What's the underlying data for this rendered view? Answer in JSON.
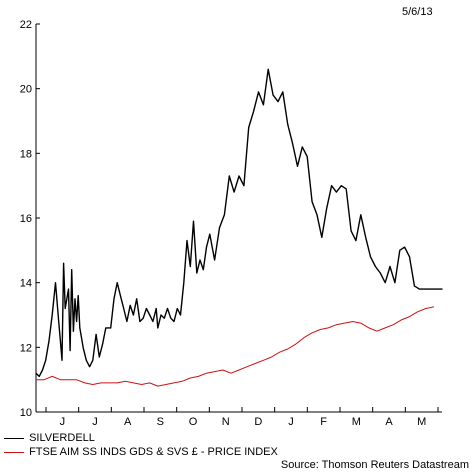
{
  "date_label": "5/6/13",
  "source": "Source: Thomson Reuters Datastream",
  "colors": {
    "series1": "#000000",
    "series2": "#d01010"
  },
  "chart_data": {
    "type": "line",
    "ylim": [
      10,
      22
    ],
    "yticks": [
      10,
      12,
      14,
      16,
      18,
      20,
      22
    ],
    "xlabels": [
      "J",
      "J",
      "A",
      "S",
      "O",
      "N",
      "D",
      "J",
      "F",
      "M",
      "A",
      "M"
    ],
    "grid": false,
    "legend_position": "bottom-left",
    "series": [
      {
        "name": "SILVERDELL",
        "x": [
          0,
          2,
          4,
          6,
          8,
          10,
          12,
          14,
          15,
          16,
          17,
          18,
          20,
          21,
          22,
          23,
          24,
          25,
          26,
          27,
          28,
          29,
          30,
          31,
          33,
          35,
          37,
          39,
          41,
          43,
          46,
          48,
          50,
          52,
          54,
          56,
          58,
          60,
          62,
          64,
          66,
          68,
          70,
          72,
          74,
          75,
          77,
          79,
          81,
          83,
          85,
          87,
          89,
          91,
          93,
          95,
          97,
          99,
          101,
          103,
          105,
          107,
          110,
          113,
          116,
          119,
          122,
          125,
          128,
          131,
          134,
          137,
          140,
          143,
          146,
          149,
          152,
          155,
          158,
          161,
          164,
          167,
          170,
          173,
          176,
          179,
          182,
          185,
          188,
          191,
          194,
          197,
          200,
          203,
          206,
          209,
          212,
          215,
          218,
          221,
          224,
          227,
          230,
          233,
          236,
          239,
          242,
          245,
          248,
          250
        ],
        "values": [
          11.2,
          11.1,
          11.3,
          11.6,
          12.2,
          13.0,
          14.0,
          12.8,
          12.2,
          11.6,
          14.6,
          13.2,
          13.8,
          11.9,
          14.4,
          12.5,
          13.5,
          12.8,
          13.6,
          12.6,
          12.3,
          12.0,
          11.8,
          11.6,
          11.4,
          11.6,
          12.4,
          11.7,
          12.1,
          12.6,
          12.6,
          13.5,
          14.0,
          13.6,
          13.2,
          12.8,
          13.3,
          13.0,
          13.5,
          12.8,
          12.9,
          13.2,
          13.0,
          12.8,
          13.2,
          12.6,
          13.0,
          12.9,
          13.2,
          12.9,
          12.8,
          13.2,
          13.0,
          14.0,
          15.3,
          14.5,
          15.9,
          14.3,
          14.7,
          14.4,
          15.1,
          15.5,
          14.7,
          15.7,
          16.1,
          17.3,
          16.8,
          17.3,
          17.0,
          18.8,
          19.3,
          19.9,
          19.5,
          20.6,
          19.8,
          19.6,
          19.9,
          18.9,
          18.3,
          17.6,
          18.2,
          17.9,
          16.5,
          16.1,
          15.4,
          16.3,
          17.0,
          16.8,
          17.0,
          16.9,
          15.6,
          15.3,
          16.1,
          15.4,
          14.8,
          14.5,
          14.3,
          14.0,
          14.5,
          14.0,
          15.0,
          15.1,
          14.8,
          13.9,
          13.8,
          13.8,
          13.8,
          13.8,
          13.8,
          13.8
        ],
        "x_end": 245
      },
      {
        "name": "FTSE AIM SS INDS GDS & SVS £ - PRICE INDEX",
        "x": [
          0,
          5,
          10,
          15,
          20,
          25,
          30,
          35,
          40,
          45,
          50,
          55,
          60,
          65,
          70,
          75,
          80,
          85,
          90,
          95,
          100,
          105,
          110,
          115,
          120,
          125,
          130,
          135,
          140,
          145,
          150,
          155,
          160,
          165,
          170,
          175,
          180,
          185,
          190,
          195,
          200,
          205,
          210,
          215,
          220,
          225,
          230,
          235,
          240,
          245
        ],
        "values": [
          11.0,
          11.0,
          11.1,
          11.0,
          11.0,
          11.0,
          10.9,
          10.85,
          10.9,
          10.9,
          10.9,
          10.95,
          10.9,
          10.85,
          10.9,
          10.8,
          10.85,
          10.9,
          10.95,
          11.05,
          11.1,
          11.2,
          11.25,
          11.3,
          11.2,
          11.3,
          11.4,
          11.5,
          11.6,
          11.7,
          11.85,
          11.95,
          12.1,
          12.3,
          12.45,
          12.55,
          12.6,
          12.7,
          12.75,
          12.8,
          12.75,
          12.6,
          12.5,
          12.6,
          12.7,
          12.85,
          12.95,
          13.1,
          13.2,
          13.25
        ]
      }
    ]
  }
}
